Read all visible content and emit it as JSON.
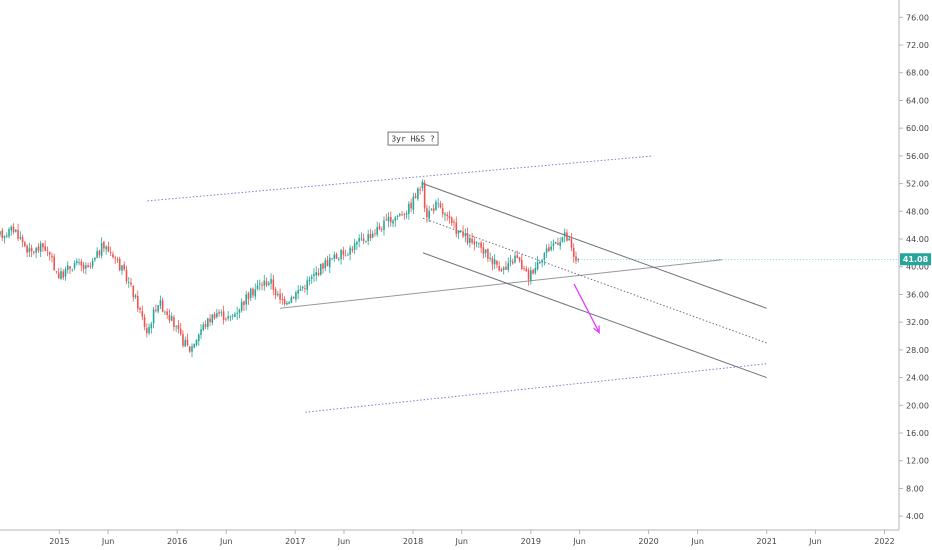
{
  "chart_data": {
    "type": "candlestick",
    "x_axis": {
      "range": [
        "2014-07-01",
        "2022-02-15"
      ],
      "tick_labels": [
        {
          "label": "2015",
          "date": "2015-01-01"
        },
        {
          "label": "Jun",
          "date": "2015-06-01"
        },
        {
          "label": "2016",
          "date": "2016-01-01"
        },
        {
          "label": "Jun",
          "date": "2016-06-01"
        },
        {
          "label": "2017",
          "date": "2017-01-01"
        },
        {
          "label": "Jun",
          "date": "2017-06-01"
        },
        {
          "label": "2018",
          "date": "2018-01-01"
        },
        {
          "label": "Jun",
          "date": "2018-06-01"
        },
        {
          "label": "2019",
          "date": "2019-01-01"
        },
        {
          "label": "Jun",
          "date": "2019-06-01"
        },
        {
          "label": "2020",
          "date": "2020-01-01"
        },
        {
          "label": "Jun",
          "date": "2020-06-01"
        },
        {
          "label": "2021",
          "date": "2021-01-01"
        },
        {
          "label": "Jun",
          "date": "2021-06-01"
        },
        {
          "label": "2022",
          "date": "2022-01-01"
        }
      ]
    },
    "y_axis": {
      "range": [
        2.0,
        78.5
      ],
      "position": "right",
      "tick_labels": [
        "4.00",
        "8.00",
        "12.00",
        "16.00",
        "20.00",
        "24.00",
        "28.00",
        "32.00",
        "36.00",
        "40.00",
        "44.00",
        "48.00",
        "52.00",
        "56.00",
        "60.00",
        "64.00",
        "68.00",
        "72.00",
        "76.00"
      ]
    },
    "last_price": {
      "label": "41.08",
      "value": 41.08,
      "color": "#26a69a"
    },
    "up_color": "#26a69a",
    "down_color": "#ef5350",
    "price_path": [
      [
        "2014-07-01",
        44.5
      ],
      [
        "2014-08-15",
        45.5
      ],
      [
        "2014-10-01",
        42.0
      ],
      [
        "2014-11-15",
        43.0
      ],
      [
        "2015-01-01",
        38.5
      ],
      [
        "2015-02-15",
        40.5
      ],
      [
        "2015-04-01",
        39.5
      ],
      [
        "2015-05-15",
        43.0
      ],
      [
        "2015-06-15",
        42.0
      ],
      [
        "2015-08-01",
        38.0
      ],
      [
        "2015-09-01",
        34.5
      ],
      [
        "2015-09-30",
        30.5
      ],
      [
        "2015-11-01",
        35.0
      ],
      [
        "2015-12-01",
        33.5
      ],
      [
        "2016-01-15",
        29.5
      ],
      [
        "2016-02-10",
        28.0
      ],
      [
        "2016-03-15",
        31.0
      ],
      [
        "2016-05-01",
        33.5
      ],
      [
        "2016-06-15",
        32.5
      ],
      [
        "2016-08-01",
        35.5
      ],
      [
        "2016-09-15",
        37.5
      ],
      [
        "2016-10-15",
        38.0
      ],
      [
        "2016-11-15",
        35.0
      ],
      [
        "2016-12-15",
        35.5
      ],
      [
        "2017-02-15",
        38.0
      ],
      [
        "2017-04-01",
        40.5
      ],
      [
        "2017-06-01",
        42.0
      ],
      [
        "2017-08-01",
        44.0
      ],
      [
        "2017-10-15",
        46.5
      ],
      [
        "2017-12-20",
        48.5
      ],
      [
        "2018-01-29",
        52.0
      ],
      [
        "2018-02-10",
        47.5
      ],
      [
        "2018-03-15",
        49.0
      ],
      [
        "2018-05-01",
        46.0
      ],
      [
        "2018-06-15",
        44.0
      ],
      [
        "2018-08-01",
        42.5
      ],
      [
        "2018-09-15",
        40.5
      ],
      [
        "2018-10-15",
        39.5
      ],
      [
        "2018-11-15",
        41.5
      ],
      [
        "2018-12-24",
        38.5
      ],
      [
        "2019-02-01",
        41.5
      ],
      [
        "2019-03-15",
        43.5
      ],
      [
        "2019-04-15",
        44.5
      ],
      [
        "2019-05-01",
        43.5
      ],
      [
        "2019-05-15",
        41.0
      ],
      [
        "2019-05-28",
        41.08
      ]
    ],
    "annotations": [
      {
        "type": "text_box",
        "text": "3yr H&S ?",
        "date": "2018-01-01",
        "value": 58.5
      }
    ],
    "drawings": [
      {
        "name": "neckline",
        "color": "#9598a1",
        "dash": "solid",
        "points": [
          [
            "2016-11-15",
            34.0
          ],
          [
            "2020-08-15",
            41.0
          ]
        ]
      },
      {
        "name": "upper-envelope",
        "color": "#7b7fd4",
        "dash": "dotted",
        "points": [
          [
            "2015-10-01",
            49.5
          ],
          [
            "2020-01-15",
            56.0
          ]
        ]
      },
      {
        "name": "lower-envelope",
        "color": "#7b7fd4",
        "dash": "dotted",
        "points": [
          [
            "2017-02-01",
            19.0
          ],
          [
            "2021-01-01",
            26.0
          ]
        ]
      },
      {
        "name": "channel-top",
        "color": "#6f7178",
        "dash": "solid",
        "points": [
          [
            "2018-02-01",
            52.0
          ],
          [
            "2021-01-01",
            34.0
          ]
        ]
      },
      {
        "name": "channel-mid",
        "color": "#6f7178",
        "dash": "dotted",
        "points": [
          [
            "2018-02-01",
            47.0
          ],
          [
            "2021-01-01",
            29.0
          ]
        ]
      },
      {
        "name": "channel-bottom",
        "color": "#6f7178",
        "dash": "solid",
        "points": [
          [
            "2018-02-01",
            42.0
          ],
          [
            "2021-01-01",
            24.0
          ]
        ]
      },
      {
        "name": "projection-arrow",
        "color": "#e040fb",
        "dash": "solid",
        "arrow": true,
        "points": [
          [
            "2019-05-15",
            37.5
          ],
          [
            "2019-08-01",
            30.5
          ]
        ]
      }
    ]
  }
}
